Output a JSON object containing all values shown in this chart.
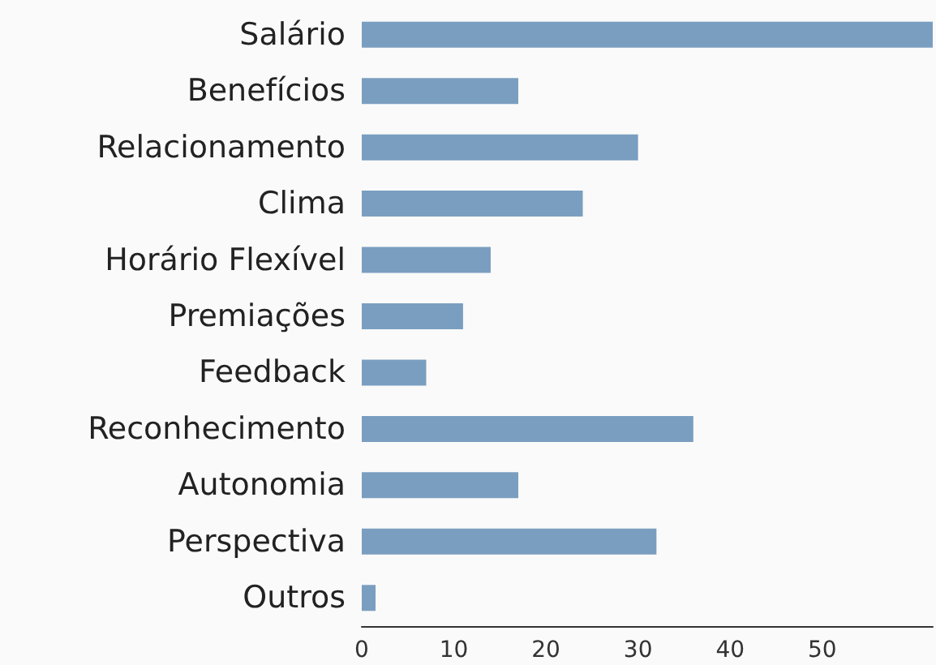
{
  "chart_data": {
    "type": "bar",
    "orientation": "horizontal",
    "categories": [
      "Salário",
      "Benefícios",
      "Relacionamento",
      "Clima",
      "Horário Flexível",
      "Premiações",
      "Feedback",
      "Reconhecimento",
      "Autonomia",
      "Perspectiva",
      "Outros"
    ],
    "values": [
      62,
      17,
      30,
      24,
      14,
      11,
      7,
      36,
      17,
      32,
      1.5
    ],
    "color": "#7a9ec0",
    "xlim": [
      0,
      62
    ],
    "xticks": [
      0,
      10,
      20,
      30,
      40,
      50
    ],
    "grid": false
  }
}
